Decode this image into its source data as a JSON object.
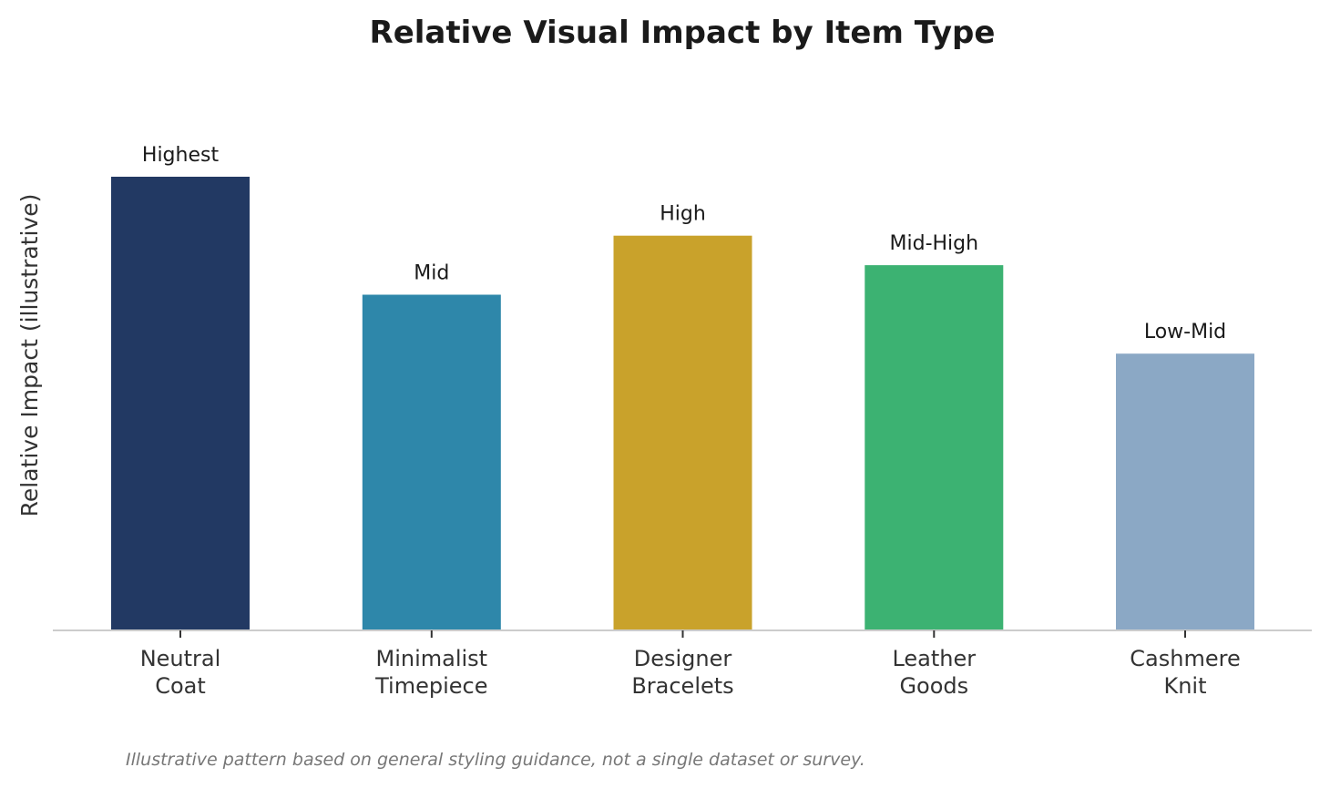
{
  "chart_data": {
    "type": "bar",
    "title": "Relative Visual Impact by Item Type",
    "xlabel": "",
    "ylabel": "Relative Impact (illustrative)",
    "categories": [
      [
        "Neutral",
        "Coat"
      ],
      [
        "Minimalist",
        "Timepiece"
      ],
      [
        "Designer",
        "Bracelets"
      ],
      [
        "Leather",
        "Goods"
      ],
      [
        "Cashmere",
        "Knit"
      ]
    ],
    "values": [
      10,
      7.4,
      8.7,
      8.05,
      6.1
    ],
    "data_labels": [
      "Highest",
      "Mid",
      "High",
      "Mid-High",
      "Low-Mid"
    ],
    "colors": [
      "#223963",
      "#2e87aa",
      "#c9a22b",
      "#3cb272",
      "#8ba8c5"
    ],
    "ylim": [
      0,
      10
    ],
    "y_ticks_shown": false,
    "grid": false,
    "legend": "none"
  },
  "footnote": "Illustrative pattern based on general styling guidance, not a single dataset or survey."
}
